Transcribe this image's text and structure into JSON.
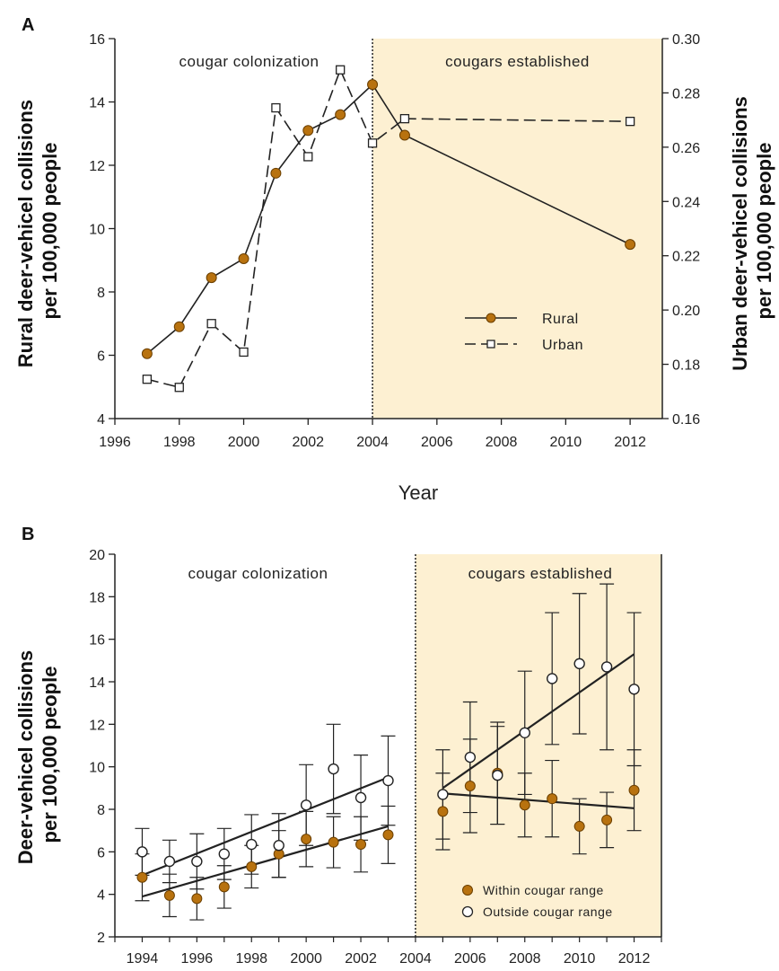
{
  "chart_data": [
    {
      "panel": "A",
      "type": "line",
      "xlabel": "Year",
      "ylabel_left": [
        "Rural deer-vehicel collisions",
        "per 100,000 people"
      ],
      "ylabel_right": [
        "Urban deer-vehicel collisions",
        "per 100,000 people"
      ],
      "xlim": [
        1996,
        2013
      ],
      "ylim_left": [
        4,
        16
      ],
      "ylim_right": [
        0.16,
        0.3
      ],
      "xticks": [
        "1996",
        "1998",
        "2000",
        "2002",
        "2004",
        "2006",
        "2008",
        "2010",
        "2012"
      ],
      "yticks_left": [
        "4",
        "6",
        "8",
        "10",
        "12",
        "14",
        "16"
      ],
      "yticks_right": [
        "0.16",
        "0.18",
        "0.20",
        "0.22",
        "0.24",
        "0.26",
        "0.28",
        "0.30"
      ],
      "regions": [
        {
          "label": "cougar colonization",
          "from": 1996,
          "to": 2004,
          "shaded": false
        },
        {
          "label": "cougars established",
          "from": 2004,
          "to": 2013,
          "shaded": true
        }
      ],
      "shade_color": "#fdf0d2",
      "legend_position": "bottom-right",
      "series": [
        {
          "name": "Rural",
          "axis": "left",
          "style": "solid",
          "marker": "filled-circle",
          "color": "#b8720f",
          "x": [
            1997,
            1998,
            1999,
            2000,
            2001,
            2002,
            2003,
            2004,
            2005,
            2012
          ],
          "y": [
            6.05,
            6.9,
            8.45,
            9.05,
            11.75,
            13.1,
            13.6,
            14.55,
            12.95,
            9.5
          ]
        },
        {
          "name": "Urban",
          "axis": "right",
          "style": "dashed",
          "marker": "open-square",
          "color": "#ffffff",
          "x": [
            1997,
            1998,
            1999,
            2000,
            2001,
            2002,
            2003,
            2004,
            2005,
            2012
          ],
          "y": [
            0.1745,
            0.1715,
            0.195,
            0.1845,
            0.2745,
            0.2565,
            0.2885,
            0.2615,
            0.2705,
            0.2695
          ]
        }
      ]
    },
    {
      "panel": "B",
      "type": "scatter",
      "ylabel": [
        "Deer-vehicel collisions",
        "per 100,000 people"
      ],
      "xlim": [
        1993,
        2013
      ],
      "ylim": [
        2,
        20
      ],
      "xticks": [
        "1994",
        "1996",
        "1998",
        "2000",
        "2002",
        "2004",
        "2006",
        "2008",
        "2010",
        "2012"
      ],
      "yticks": [
        "2",
        "4",
        "6",
        "8",
        "10",
        "12",
        "14",
        "16",
        "18",
        "20"
      ],
      "regions": [
        {
          "label": "cougar colonization",
          "from": 1993,
          "to": 2004,
          "shaded": false
        },
        {
          "label": "cougars established",
          "from": 2004,
          "to": 2013,
          "shaded": true
        }
      ],
      "shade_color": "#fdf0d2",
      "legend_position": "bottom-right",
      "series": [
        {
          "name": "Within cougar range",
          "marker": "filled-circle",
          "color": "#b8720f",
          "x": [
            1994,
            1995,
            1996,
            1997,
            1998,
            1999,
            2000,
            2001,
            2002,
            2003,
            2005,
            2006,
            2007,
            2008,
            2009,
            2010,
            2011,
            2012
          ],
          "y": [
            4.8,
            3.95,
            3.8,
            4.35,
            5.3,
            5.9,
            6.6,
            6.45,
            6.35,
            6.8,
            7.9,
            9.1,
            9.7,
            8.2,
            8.5,
            7.2,
            7.5,
            8.9
          ],
          "err": [
            1.1,
            1.0,
            1.0,
            1.0,
            1.0,
            1.1,
            1.3,
            1.2,
            1.3,
            1.35,
            1.8,
            2.2,
            2.4,
            1.5,
            1.8,
            1.3,
            1.3,
            1.9
          ]
        },
        {
          "name": "Outside cougar range",
          "marker": "open-circle",
          "color": "#ffffff",
          "x": [
            1994,
            1995,
            1996,
            1997,
            1998,
            1999,
            2000,
            2001,
            2002,
            2003,
            2005,
            2006,
            2007,
            2008,
            2009,
            2010,
            2011,
            2012
          ],
          "y": [
            6.0,
            5.55,
            5.55,
            5.9,
            6.35,
            6.3,
            8.2,
            9.9,
            8.55,
            9.35,
            8.7,
            10.45,
            9.6,
            11.6,
            14.15,
            14.85,
            14.7,
            13.65
          ],
          "err": [
            1.1,
            1.0,
            1.3,
            1.2,
            1.4,
            1.5,
            1.9,
            2.1,
            2.0,
            2.1,
            2.1,
            2.6,
            2.3,
            2.9,
            3.1,
            3.3,
            3.9,
            3.6
          ]
        }
      ],
      "trend_lines": [
        {
          "series": "Within cougar range",
          "x": [
            1994,
            2003
          ],
          "y": [
            3.9,
            7.2
          ]
        },
        {
          "series": "Outside cougar range",
          "x": [
            1994,
            2003
          ],
          "y": [
            4.9,
            9.5
          ]
        },
        {
          "series": "Within cougar range",
          "x": [
            2005,
            2012
          ],
          "y": [
            8.75,
            8.05
          ]
        },
        {
          "series": "Outside cougar range",
          "x": [
            2005,
            2012
          ],
          "y": [
            9.0,
            15.3
          ]
        }
      ]
    }
  ]
}
